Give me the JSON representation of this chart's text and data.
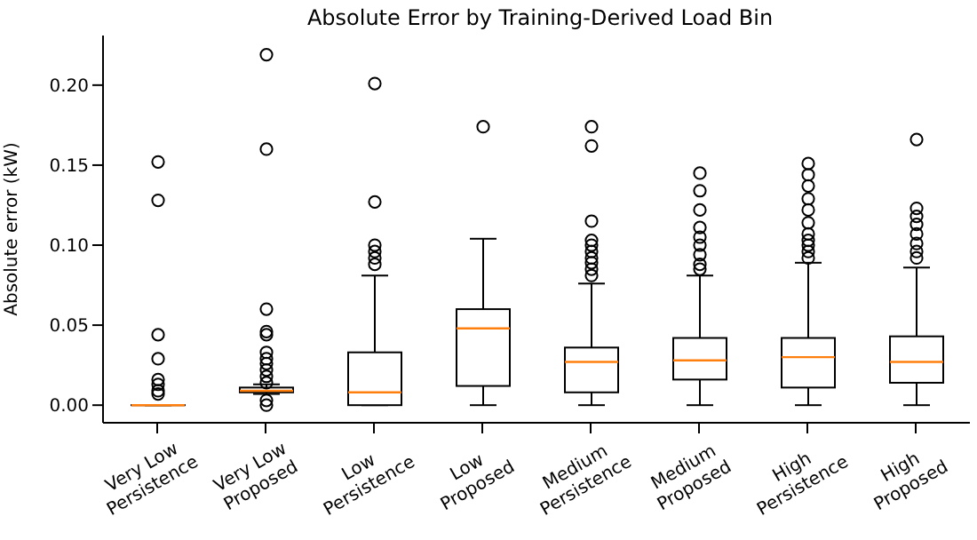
{
  "chart_data": {
    "type": "box",
    "title": "Absolute Error by Training-Derived Load Bin",
    "ylabel": "Absolute error (kW)",
    "categories": [
      "Very Low Persistence",
      "Very Low Proposed",
      "Low Persistence",
      "Low Proposed",
      "Medium Persistence",
      "Medium Proposed",
      "High Persistence",
      "High Proposed"
    ],
    "ylim": [
      -0.011,
      0.231
    ],
    "yticks": [
      {
        "value": 0,
        "label": "0.00"
      },
      {
        "value": 0.05,
        "label": "0.05"
      },
      {
        "value": 0.1,
        "label": "0.10"
      },
      {
        "value": 0.15,
        "label": "0.15"
      },
      {
        "value": 0.2,
        "label": "0.20"
      }
    ],
    "boxes": [
      {
        "low": 0,
        "q1": 0,
        "median": 0,
        "q3": 0,
        "high": 0,
        "outliers": [
          0.152,
          0.128,
          0.044,
          0.029,
          0.016,
          0.013,
          0.009,
          0.007
        ]
      },
      {
        "low": 0.007,
        "q1": 0.008,
        "median": 0.009,
        "q3": 0.011,
        "high": 0.013,
        "outliers": [
          0.219,
          0.16,
          0.06,
          0.046,
          0.044,
          0.033,
          0.029,
          0.026,
          0.022,
          0.018,
          0.014,
          0.003,
          0
        ]
      },
      {
        "low": 0,
        "q1": 0,
        "median": 0.008,
        "q3": 0.033,
        "high": 0.081,
        "outliers": [
          0.201,
          0.127,
          0.1,
          0.096,
          0.092,
          0.088
        ]
      },
      {
        "low": 0,
        "q1": 0.012,
        "median": 0.048,
        "q3": 0.06,
        "high": 0.104,
        "outliers": [
          0.174
        ]
      },
      {
        "low": 0,
        "q1": 0.008,
        "median": 0.027,
        "q3": 0.036,
        "high": 0.076,
        "outliers": [
          0.174,
          0.162,
          0.115,
          0.103,
          0.1,
          0.096,
          0.092,
          0.089,
          0.085,
          0.081
        ]
      },
      {
        "low": 0,
        "q1": 0.016,
        "median": 0.028,
        "q3": 0.042,
        "high": 0.081,
        "outliers": [
          0.145,
          0.134,
          0.122,
          0.111,
          0.105,
          0.1,
          0.094,
          0.088,
          0.085
        ]
      },
      {
        "low": 0,
        "q1": 0.011,
        "median": 0.03,
        "q3": 0.042,
        "high": 0.089,
        "outliers": [
          0.151,
          0.144,
          0.137,
          0.129,
          0.122,
          0.114,
          0.107,
          0.103,
          0.1,
          0.096,
          0.092
        ]
      },
      {
        "low": 0,
        "q1": 0.014,
        "median": 0.027,
        "q3": 0.043,
        "high": 0.086,
        "outliers": [
          0.166,
          0.123,
          0.118,
          0.113,
          0.107,
          0.101,
          0.096,
          0.092
        ]
      }
    ]
  }
}
